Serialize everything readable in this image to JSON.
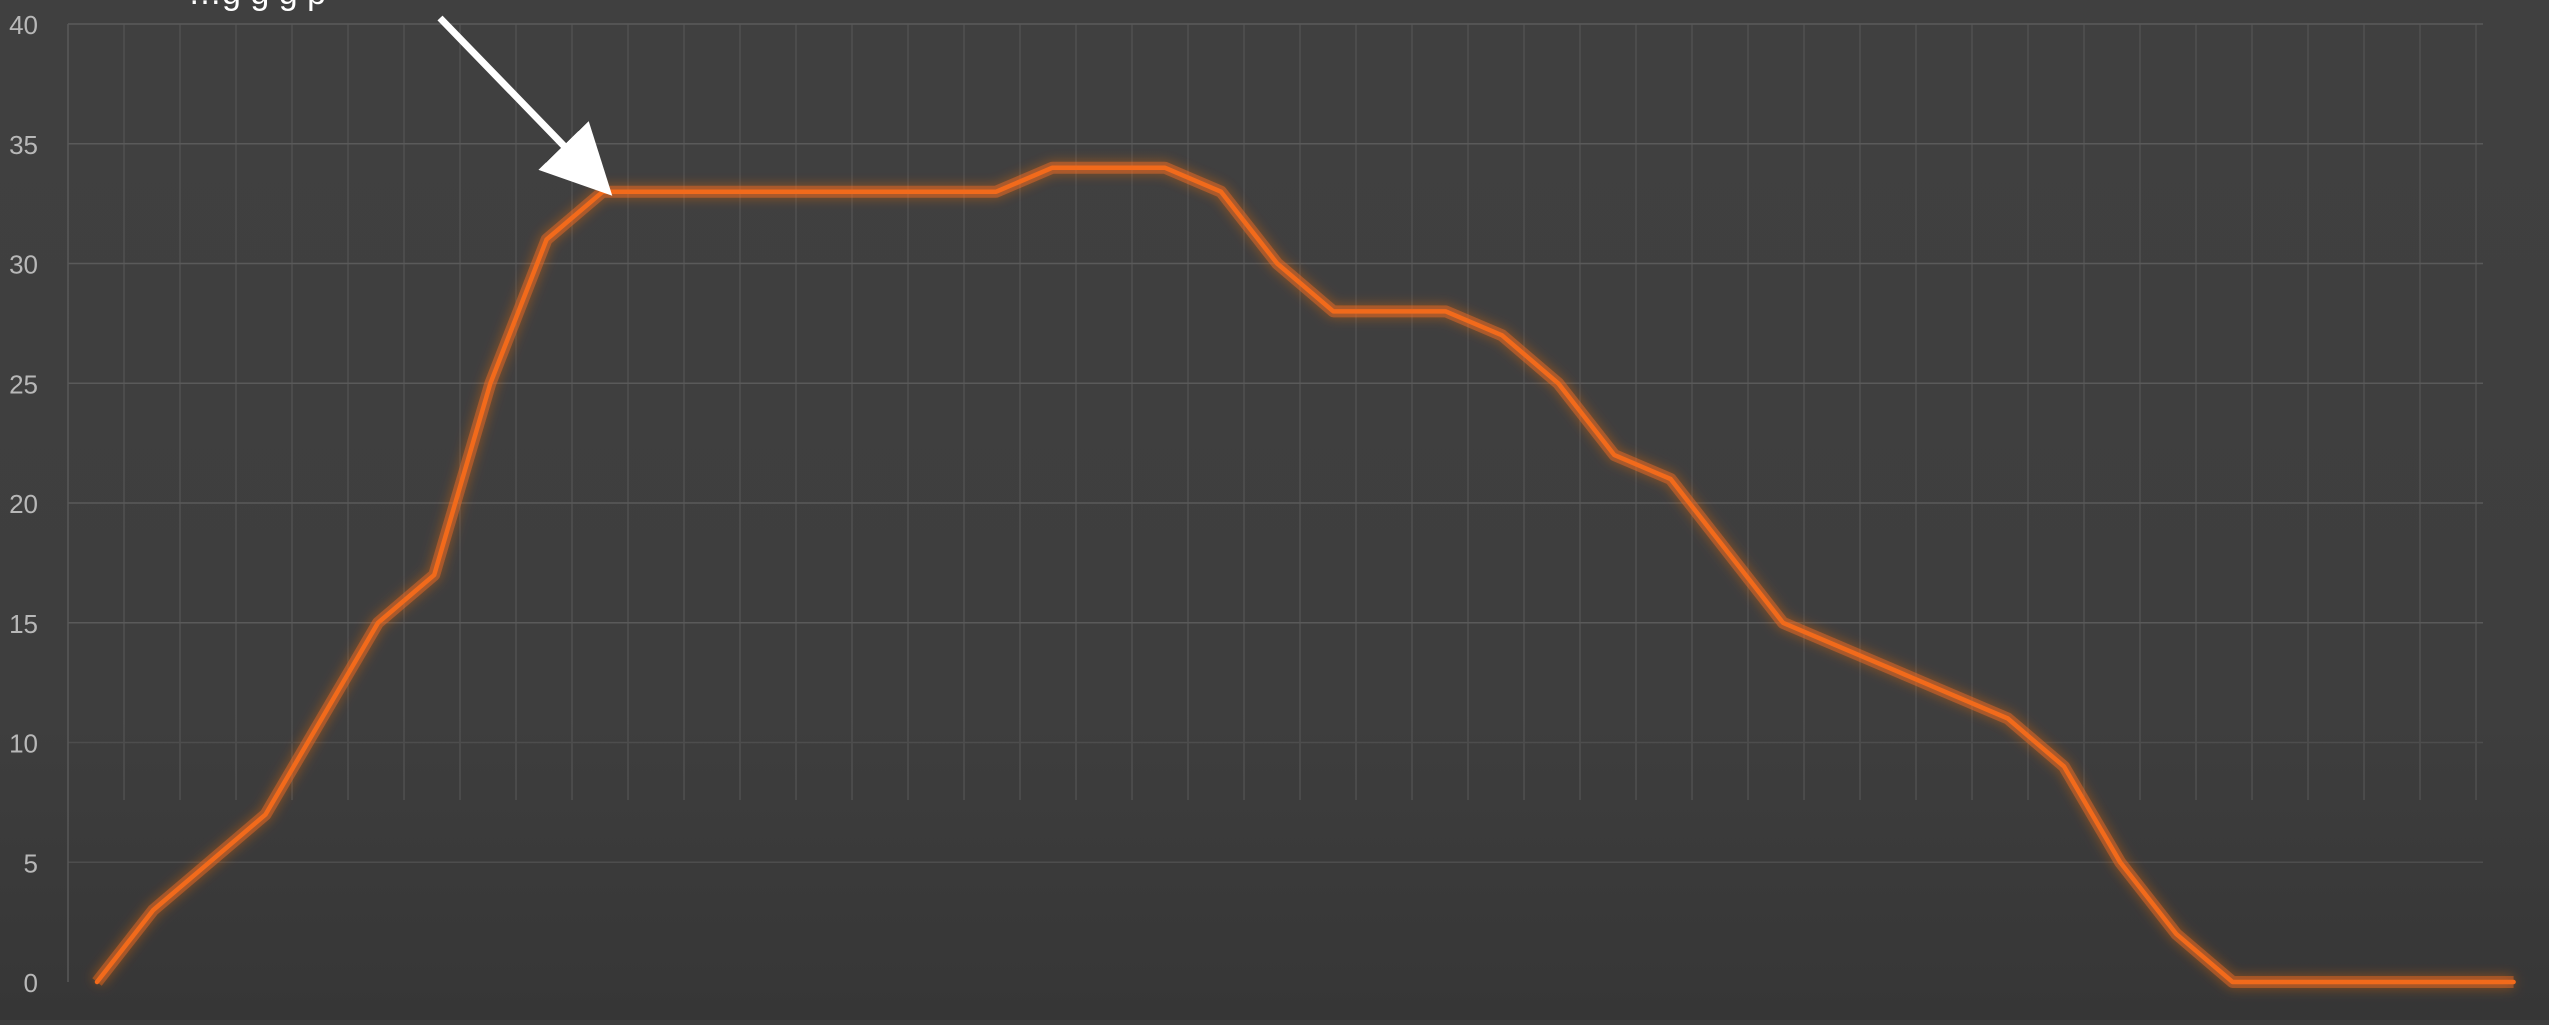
{
  "chart_data": {
    "type": "line",
    "title": "",
    "xlabel": "",
    "ylabel": "",
    "ylim": [
      0,
      40
    ],
    "yticks": [
      "0",
      "5",
      "10",
      "15",
      "20",
      "25",
      "30",
      "35",
      "40"
    ],
    "grid": true,
    "x_count": 44,
    "x": [
      0,
      1,
      2,
      3,
      4,
      5,
      6,
      7,
      8,
      9,
      10,
      11,
      12,
      13,
      14,
      15,
      16,
      17,
      18,
      19,
      20,
      21,
      22,
      23,
      24,
      25,
      26,
      27,
      28,
      29,
      30,
      31,
      32,
      33,
      34,
      35,
      36,
      37,
      38,
      39,
      40,
      41,
      42,
      43
    ],
    "series": [
      {
        "values": [
          0,
          3,
          5,
          7,
          11,
          15,
          17,
          25,
          31,
          33,
          33,
          33,
          33,
          33,
          33,
          33,
          33,
          34,
          34,
          34,
          33,
          30,
          28,
          28,
          28,
          27,
          25,
          22,
          21,
          18,
          15,
          14,
          13,
          12,
          11,
          9,
          5,
          2,
          0,
          0,
          0,
          0,
          0,
          0
        ],
        "color": "#f26a1b"
      }
    ],
    "annotation": {
      "text": "…g      g   g p",
      "target_index": 9,
      "arrow_color": "#ffffff"
    }
  }
}
